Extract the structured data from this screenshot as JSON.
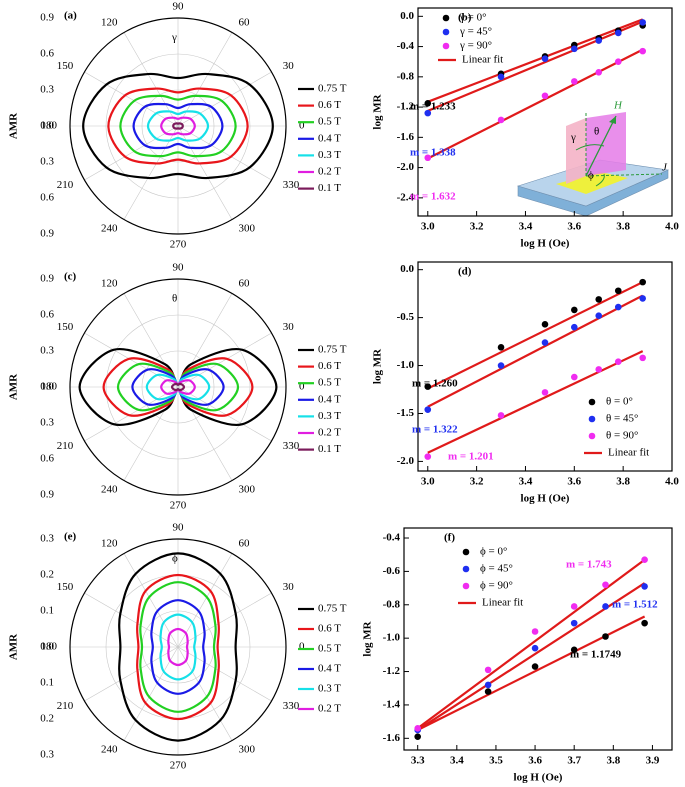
{
  "chart_data": [
    {
      "type": "polar",
      "panel_label": "(a)",
      "symbol": "γ",
      "ylabel": "AMR",
      "ylim": [
        0,
        0.9
      ],
      "yticks": [
        {
          "value": 0,
          "label": "0.0"
        },
        0.3,
        0.6,
        0.9
      ],
      "x": [
        0,
        30,
        60,
        90,
        120,
        150,
        180,
        210,
        240,
        270,
        300,
        330
      ],
      "xticks": [
        0,
        30,
        60,
        90,
        120,
        150,
        180,
        210,
        240,
        270,
        300,
        330
      ],
      "series": [
        {
          "name": "0.75 T",
          "color": "#000000",
          "values": [
            0.79,
            0.69,
            0.5,
            0.4,
            0.5,
            0.69,
            0.79,
            0.69,
            0.5,
            0.4,
            0.5,
            0.69
          ]
        },
        {
          "name": "0.6 T",
          "color": "#e8161b",
          "values": [
            0.58,
            0.51,
            0.36,
            0.28,
            0.36,
            0.51,
            0.58,
            0.51,
            0.36,
            0.28,
            0.36,
            0.51
          ]
        },
        {
          "name": "0.5 T",
          "color": "#22d022",
          "values": [
            0.48,
            0.42,
            0.29,
            0.22,
            0.29,
            0.42,
            0.48,
            0.42,
            0.29,
            0.22,
            0.29,
            0.42
          ]
        },
        {
          "name": "0.4 T",
          "color": "#1a1ae6",
          "values": [
            0.37,
            0.32,
            0.21,
            0.15,
            0.21,
            0.32,
            0.37,
            0.32,
            0.21,
            0.15,
            0.21,
            0.32
          ]
        },
        {
          "name": "0.3 T",
          "color": "#16e0e8",
          "values": [
            0.25,
            0.21,
            0.14,
            0.1,
            0.14,
            0.21,
            0.25,
            0.21,
            0.14,
            0.1,
            0.14,
            0.21
          ]
        },
        {
          "name": "0.2 T",
          "color": "#e01ee0",
          "values": [
            0.14,
            0.12,
            0.08,
            0.06,
            0.08,
            0.12,
            0.14,
            0.12,
            0.08,
            0.06,
            0.08,
            0.12
          ]
        },
        {
          "name": "0.1 T",
          "color": "#7b1b5b",
          "values": [
            0.04,
            0.035,
            0.025,
            0.02,
            0.025,
            0.035,
            0.04,
            0.035,
            0.025,
            0.02,
            0.025,
            0.035
          ]
        }
      ]
    },
    {
      "type": "scatter",
      "panel_label": "(b)",
      "xlabel": "log H (Oe)",
      "ylabel": "log MR",
      "x": [
        3.0,
        3.3,
        3.48,
        3.6,
        3.7,
        3.78,
        3.88
      ],
      "xlim": [
        2.96,
        4.0
      ],
      "xticks": [
        {
          "value": 3,
          "label": "3.0"
        },
        3.2,
        3.4,
        3.6,
        3.8,
        {
          "value": 4,
          "label": "4.0"
        }
      ],
      "ylim": [
        -2.64,
        0.11
      ],
      "yticks": [
        {
          "value": 0,
          "label": "0.0"
        },
        -0.4,
        -0.8,
        -1.2,
        -1.6,
        {
          "value": -2,
          "label": "-2.0"
        },
        -2.4
      ],
      "fit_name": "Linear fit",
      "fit_color": "#e01a1a",
      "fit_x": [
        3.0,
        3.88
      ],
      "series": [
        {
          "name": "γ = 0°",
          "color": "#000000",
          "values": [
            -1.15,
            -0.76,
            -0.53,
            -0.38,
            -0.29,
            -0.19,
            -0.12
          ],
          "fit": [
            -1.13,
            -0.04
          ],
          "annotation": "m = 1.233"
        },
        {
          "name": "γ = 45°",
          "color": "#1f2ff0",
          "values": [
            -1.28,
            -0.8,
            -0.56,
            -0.43,
            -0.32,
            -0.22,
            -0.08
          ],
          "fit": [
            -1.25,
            -0.07
          ],
          "annotation": "m = 1.338"
        },
        {
          "name": "γ = 90°",
          "color": "#f02cf0",
          "values": [
            -1.87,
            -1.37,
            -1.05,
            -0.86,
            -0.74,
            -0.6,
            -0.46
          ],
          "fit": [
            -1.88,
            -0.44
          ],
          "annotation": "m = 1.632"
        }
      ],
      "inset_labels": [
        "γ",
        "θ",
        "ϕ",
        "H",
        "J"
      ]
    },
    {
      "type": "polar",
      "panel_label": "(c)",
      "symbol": "θ",
      "ylabel": "AMR",
      "ylim": [
        0,
        0.9
      ],
      "yticks": [
        {
          "value": 0,
          "label": "0.0"
        },
        0.3,
        0.6,
        0.9
      ],
      "x": [
        0,
        30,
        60,
        90,
        120,
        150,
        180,
        210,
        240,
        270,
        300,
        330
      ],
      "xticks": [
        0,
        30,
        60,
        90,
        120,
        150,
        180,
        210,
        240,
        270,
        300,
        330
      ],
      "series": [
        {
          "name": "0.75 T",
          "color": "#000000",
          "values": [
            0.82,
            0.62,
            0.22,
            0.02,
            0.22,
            0.62,
            0.82,
            0.62,
            0.22,
            0.02,
            0.22,
            0.62
          ]
        },
        {
          "name": "0.6 T",
          "color": "#e8161b",
          "values": [
            0.62,
            0.47,
            0.17,
            0.02,
            0.17,
            0.47,
            0.62,
            0.47,
            0.17,
            0.02,
            0.17,
            0.47
          ]
        },
        {
          "name": "0.5 T",
          "color": "#22d022",
          "values": [
            0.5,
            0.38,
            0.14,
            0.02,
            0.14,
            0.38,
            0.5,
            0.38,
            0.14,
            0.02,
            0.14,
            0.38
          ]
        },
        {
          "name": "0.4 T",
          "color": "#1a1ae6",
          "values": [
            0.38,
            0.29,
            0.11,
            0.02,
            0.11,
            0.29,
            0.38,
            0.29,
            0.11,
            0.02,
            0.11,
            0.29
          ]
        },
        {
          "name": "0.3 T",
          "color": "#16e0e8",
          "values": [
            0.26,
            0.2,
            0.08,
            0.02,
            0.08,
            0.2,
            0.26,
            0.2,
            0.08,
            0.02,
            0.08,
            0.2
          ]
        },
        {
          "name": "0.2 T",
          "color": "#e01ee0",
          "values": [
            0.14,
            0.11,
            0.05,
            0.02,
            0.05,
            0.11,
            0.14,
            0.11,
            0.05,
            0.02,
            0.05,
            0.11
          ]
        },
        {
          "name": "0.1 T",
          "color": "#7b1b5b",
          "values": [
            0.05,
            0.04,
            0.03,
            0.02,
            0.03,
            0.04,
            0.05,
            0.04,
            0.03,
            0.02,
            0.03,
            0.04
          ]
        }
      ]
    },
    {
      "type": "scatter",
      "panel_label": "(d)",
      "xlabel": "log H (Oe)",
      "ylabel": "log MR",
      "x": [
        3.0,
        3.3,
        3.48,
        3.6,
        3.7,
        3.78,
        3.88
      ],
      "xlim": [
        2.96,
        4.0
      ],
      "xticks": [
        {
          "value": 3,
          "label": "3.0"
        },
        3.2,
        3.4,
        3.6,
        3.8,
        {
          "value": 4,
          "label": "4.0"
        }
      ],
      "ylim": [
        -2.1,
        0.08
      ],
      "yticks": [
        {
          "value": 0,
          "label": "0.0"
        },
        -0.5,
        {
          "value": -1,
          "label": "-1.0"
        },
        -1.5,
        {
          "value": -2,
          "label": "-2.0"
        }
      ],
      "fit_name": "Linear fit",
      "fit_color": "#e01a1a",
      "fit_x": [
        3.0,
        3.88
      ],
      "series": [
        {
          "name": "θ = 0°",
          "color": "#000000",
          "values": [
            -1.22,
            -0.81,
            -0.57,
            -0.42,
            -0.31,
            -0.22,
            -0.13
          ],
          "fit": [
            -1.24,
            -0.13
          ],
          "annotation": "m = 1.260"
        },
        {
          "name": "θ = 45°",
          "color": "#1f2ff0",
          "values": [
            -1.46,
            -1.0,
            -0.76,
            -0.6,
            -0.48,
            -0.39,
            -0.3
          ],
          "fit": [
            -1.43,
            -0.27
          ],
          "annotation": "m = 1.322"
        },
        {
          "name": "θ = 90°",
          "color": "#f02cf0",
          "values": [
            -1.95,
            -1.52,
            -1.28,
            -1.12,
            -1.04,
            -0.96,
            -0.92
          ],
          "fit": [
            -1.91,
            -0.85
          ],
          "annotation": "m = 1.201"
        }
      ]
    },
    {
      "type": "polar",
      "panel_label": "(e)",
      "symbol": "ϕ",
      "ylabel": "AMR",
      "ylim": [
        0,
        0.3
      ],
      "yticks": [
        {
          "value": 0,
          "label": "0.0"
        },
        0.1,
        0.2,
        0.3
      ],
      "x": [
        0,
        30,
        60,
        90,
        120,
        150,
        180,
        210,
        240,
        270,
        300,
        330
      ],
      "xticks": [
        0,
        30,
        60,
        90,
        120,
        150,
        180,
        210,
        240,
        270,
        300,
        330
      ],
      "series": [
        {
          "name": "0.75 T",
          "color": "#000000",
          "values": [
            0.16,
            0.185,
            0.235,
            0.26,
            0.235,
            0.185,
            0.16,
            0.185,
            0.235,
            0.26,
            0.235,
            0.185
          ]
        },
        {
          "name": "0.6 T",
          "color": "#e8161b",
          "values": [
            0.11,
            0.13,
            0.18,
            0.2,
            0.18,
            0.13,
            0.11,
            0.13,
            0.18,
            0.2,
            0.18,
            0.13
          ]
        },
        {
          "name": "0.5 T",
          "color": "#22d022",
          "values": [
            0.1,
            0.12,
            0.16,
            0.18,
            0.16,
            0.12,
            0.1,
            0.12,
            0.16,
            0.18,
            0.16,
            0.12
          ]
        },
        {
          "name": "0.4 T",
          "color": "#1a1ae6",
          "values": [
            0.07,
            0.085,
            0.115,
            0.13,
            0.115,
            0.085,
            0.07,
            0.085,
            0.115,
            0.13,
            0.115,
            0.085
          ]
        },
        {
          "name": "0.3 T",
          "color": "#16e0e8",
          "values": [
            0.045,
            0.056,
            0.079,
            0.09,
            0.079,
            0.056,
            0.045,
            0.056,
            0.079,
            0.09,
            0.079,
            0.056
          ]
        },
        {
          "name": "0.2 T",
          "color": "#e01ee0",
          "values": [
            0.025,
            0.031,
            0.044,
            0.05,
            0.044,
            0.031,
            0.025,
            0.031,
            0.044,
            0.05,
            0.044,
            0.031
          ]
        }
      ]
    },
    {
      "type": "scatter",
      "panel_label": "(f)",
      "xlabel": "log H (Oe)",
      "ylabel": "log MR",
      "x": [
        3.3,
        3.48,
        3.6,
        3.7,
        3.78,
        3.88
      ],
      "xlim": [
        3.265,
        3.95
      ],
      "xticks": [
        3.3,
        3.4,
        3.5,
        3.6,
        3.7,
        3.8,
        3.9
      ],
      "ylim": [
        -1.67,
        -0.34
      ],
      "yticks": [
        -1.6,
        -1.4,
        -1.2,
        {
          "value": -1,
          "label": "-1.0"
        },
        -0.8,
        -0.6,
        -0.4
      ],
      "fit_name": "Linear fit",
      "fit_color": "#e01a1a",
      "fit_x": [
        3.3,
        3.88
      ],
      "series": [
        {
          "name": "ϕ = 0°",
          "color": "#000000",
          "values": [
            -1.59,
            -1.32,
            -1.17,
            -1.07,
            -0.99,
            -0.91
          ],
          "fit": [
            -1.55,
            -0.87
          ],
          "annotation": "m = 1.1749"
        },
        {
          "name": "ϕ = 45°",
          "color": "#1f2ff0",
          "values": [
            -1.55,
            -1.28,
            -1.06,
            -0.91,
            -0.81,
            -0.69
          ],
          "fit": [
            -1.55,
            -0.67
          ],
          "annotation": "m = 1.512"
        },
        {
          "name": "ϕ = 90°",
          "color": "#f02cf0",
          "values": [
            -1.54,
            -1.19,
            -0.96,
            -0.81,
            -0.68,
            -0.53
          ],
          "fit": [
            -1.54,
            -0.53
          ],
          "annotation": "m = 1.743"
        }
      ]
    }
  ]
}
